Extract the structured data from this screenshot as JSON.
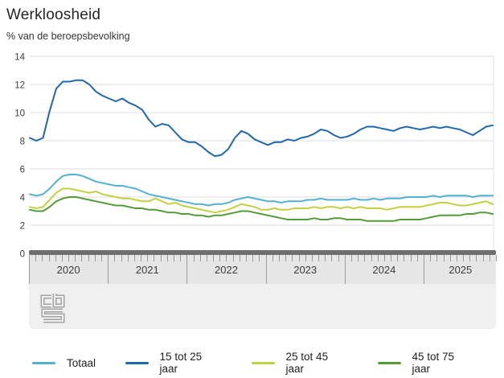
{
  "header": {
    "title": "Werkloosheid",
    "subtitle": "% van de beroepsbevolking"
  },
  "chart_data": {
    "type": "line",
    "title": "Werkloosheid",
    "ylabel": "% van de beroepsbevolking",
    "ylim": [
      0,
      14
    ],
    "yticks": [
      0,
      2,
      4,
      6,
      8,
      10,
      12,
      14
    ],
    "grid": true,
    "legend_position": "bottom",
    "x_unit": "month",
    "x_start": "2020-01",
    "x_end": "2025-11",
    "year_labels": [
      "2020",
      "2021",
      "2022",
      "2023",
      "2024",
      "2025"
    ],
    "series": [
      {
        "name": "Totaal",
        "color": "#53b1cf",
        "values": [
          4.2,
          4.1,
          4.2,
          4.6,
          5.1,
          5.5,
          5.6,
          5.6,
          5.5,
          5.3,
          5.1,
          5.0,
          4.9,
          4.8,
          4.8,
          4.7,
          4.6,
          4.4,
          4.2,
          4.1,
          4.0,
          3.9,
          3.8,
          3.7,
          3.6,
          3.5,
          3.5,
          3.4,
          3.5,
          3.5,
          3.6,
          3.8,
          3.9,
          4.0,
          3.9,
          3.8,
          3.7,
          3.7,
          3.6,
          3.7,
          3.7,
          3.7,
          3.8,
          3.8,
          3.9,
          3.8,
          3.8,
          3.8,
          3.8,
          3.9,
          3.8,
          3.8,
          3.9,
          3.8,
          3.9,
          3.9,
          3.9,
          4.0,
          4.0,
          4.0,
          4.0,
          4.1,
          4.0,
          4.1,
          4.1,
          4.1,
          4.1,
          4.0,
          4.1,
          4.1,
          4.1
        ]
      },
      {
        "name": "15 tot 25 jaar",
        "color": "#1f67b0",
        "values": [
          8.2,
          8.0,
          8.2,
          10.1,
          11.7,
          12.2,
          12.2,
          12.3,
          12.3,
          12.0,
          11.5,
          11.2,
          11.0,
          10.8,
          11.0,
          10.7,
          10.5,
          10.2,
          9.5,
          9.0,
          9.2,
          9.1,
          8.6,
          8.1,
          7.9,
          7.9,
          7.6,
          7.2,
          6.9,
          7.0,
          7.4,
          8.2,
          8.7,
          8.5,
          8.1,
          7.9,
          7.7,
          7.9,
          7.9,
          8.1,
          8.0,
          8.2,
          8.3,
          8.5,
          8.8,
          8.7,
          8.4,
          8.2,
          8.3,
          8.5,
          8.8,
          9.0,
          9.0,
          8.9,
          8.8,
          8.7,
          8.9,
          9.0,
          8.9,
          8.8,
          8.9,
          9.0,
          8.9,
          9.0,
          8.9,
          8.8,
          8.6,
          8.4,
          8.7,
          9.0,
          9.1
        ]
      },
      {
        "name": "25 tot 45 jaar",
        "color": "#c3d13f",
        "values": [
          3.3,
          3.2,
          3.3,
          3.8,
          4.3,
          4.6,
          4.6,
          4.5,
          4.4,
          4.3,
          4.4,
          4.2,
          4.1,
          4.0,
          3.9,
          3.9,
          3.8,
          3.7,
          3.7,
          3.9,
          3.7,
          3.5,
          3.6,
          3.4,
          3.3,
          3.2,
          3.1,
          3.0,
          2.9,
          3.0,
          3.1,
          3.3,
          3.5,
          3.4,
          3.3,
          3.1,
          3.1,
          3.2,
          3.1,
          3.1,
          3.2,
          3.2,
          3.2,
          3.3,
          3.2,
          3.3,
          3.3,
          3.2,
          3.3,
          3.2,
          3.3,
          3.2,
          3.2,
          3.2,
          3.1,
          3.2,
          3.3,
          3.3,
          3.3,
          3.3,
          3.4,
          3.5,
          3.6,
          3.6,
          3.5,
          3.4,
          3.4,
          3.5,
          3.6,
          3.7,
          3.5
        ]
      },
      {
        "name": "45 tot 75 jaar",
        "color": "#549b39",
        "values": [
          3.1,
          3.0,
          3.0,
          3.3,
          3.7,
          3.9,
          4.0,
          4.0,
          3.9,
          3.8,
          3.7,
          3.6,
          3.5,
          3.4,
          3.4,
          3.3,
          3.2,
          3.2,
          3.1,
          3.1,
          3.0,
          2.9,
          2.9,
          2.8,
          2.8,
          2.7,
          2.7,
          2.6,
          2.7,
          2.7,
          2.8,
          2.9,
          3.0,
          3.0,
          2.9,
          2.8,
          2.7,
          2.6,
          2.5,
          2.4,
          2.4,
          2.4,
          2.4,
          2.5,
          2.4,
          2.4,
          2.5,
          2.5,
          2.4,
          2.4,
          2.4,
          2.3,
          2.3,
          2.3,
          2.3,
          2.3,
          2.4,
          2.4,
          2.4,
          2.4,
          2.5,
          2.6,
          2.7,
          2.7,
          2.7,
          2.7,
          2.8,
          2.8,
          2.9,
          2.9,
          2.8
        ]
      }
    ]
  },
  "legend": {
    "items": [
      {
        "label": "Totaal",
        "color": "#53b1cf"
      },
      {
        "label": "15 tot 25 jaar",
        "color": "#1f67b0"
      },
      {
        "label": "25 tot 45 jaar",
        "color": "#c3d13f"
      },
      {
        "label": "45 tot 75 jaar",
        "color": "#549b39"
      }
    ]
  },
  "branding": {
    "logo": "cbs-logo"
  },
  "colors": {
    "grid": "#dcdcdc",
    "band": "#e6e6e6",
    "slider": "#6e6e6e",
    "panel": "#f0f0f0"
  }
}
